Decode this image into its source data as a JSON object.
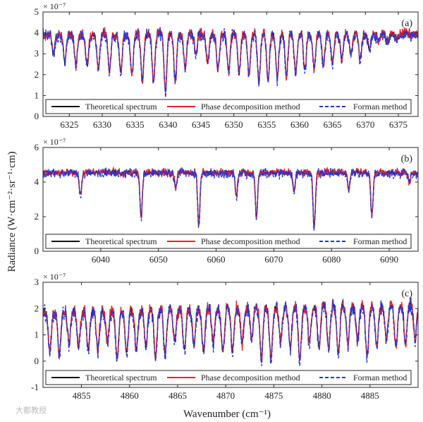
{
  "figure": {
    "ylabel": "Radiance (W·cm⁻²·sr⁻¹·cm)",
    "xlabel": "Wavenumber (cm⁻¹)",
    "watermark": "大都教授",
    "colors": {
      "theoretical": "#111111",
      "phase": "#e8202a",
      "forman": "#2235d9",
      "axis": "#262626"
    }
  },
  "chart_data": [
    {
      "type": "line",
      "panel": "(a)",
      "exponent": "× 10⁻⁷",
      "xlim": [
        6321,
        6378
      ],
      "ylim": [
        0,
        5
      ],
      "xticks": [
        6325,
        6330,
        6335,
        6340,
        6345,
        6350,
        6355,
        6360,
        6365,
        6370,
        6375
      ],
      "yticks": [
        0,
        1,
        2,
        3,
        4,
        5
      ],
      "baseline": 3.95,
      "lines": [
        {
          "x": 6322.6,
          "depth": 0.9
        },
        {
          "x": 6324.3,
          "depth": 1.4
        },
        {
          "x": 6326.0,
          "depth": 1.5
        },
        {
          "x": 6327.7,
          "depth": 1.6
        },
        {
          "x": 6329.4,
          "depth": 1.7
        },
        {
          "x": 6331.1,
          "depth": 1.8
        },
        {
          "x": 6332.8,
          "depth": 1.9
        },
        {
          "x": 6334.5,
          "depth": 2.0
        },
        {
          "x": 6336.1,
          "depth": 2.2
        },
        {
          "x": 6337.8,
          "depth": 2.4
        },
        {
          "x": 6339.6,
          "depth": 2.7
        },
        {
          "x": 6341.1,
          "depth": 2.2
        },
        {
          "x": 6342.6,
          "depth": 1.7
        },
        {
          "x": 6344.2,
          "depth": 0.9
        },
        {
          "x": 6346.0,
          "depth": 1.4
        },
        {
          "x": 6347.6,
          "depth": 1.7
        },
        {
          "x": 6349.2,
          "depth": 1.8
        },
        {
          "x": 6350.8,
          "depth": 1.9
        },
        {
          "x": 6352.3,
          "depth": 2.0
        },
        {
          "x": 6353.8,
          "depth": 2.2
        },
        {
          "x": 6355.2,
          "depth": 2.2
        },
        {
          "x": 6356.6,
          "depth": 2.1
        },
        {
          "x": 6358.0,
          "depth": 2.0
        },
        {
          "x": 6359.4,
          "depth": 1.9
        },
        {
          "x": 6360.8,
          "depth": 1.8
        },
        {
          "x": 6362.2,
          "depth": 1.7
        },
        {
          "x": 6363.6,
          "depth": 1.5
        },
        {
          "x": 6365.0,
          "depth": 1.4
        },
        {
          "x": 6366.4,
          "depth": 1.2
        },
        {
          "x": 6367.8,
          "depth": 1.0
        },
        {
          "x": 6369.2,
          "depth": 1.2
        },
        {
          "x": 6370.6,
          "depth": 0.7
        },
        {
          "x": 6372.0,
          "depth": 0.4
        },
        {
          "x": 6373.4,
          "depth": 0.3
        },
        {
          "x": 6374.8,
          "depth": 0.25
        }
      ],
      "legend": [
        "Theoretical spectrum",
        "Phase decomposition method",
        "Forman method"
      ],
      "legend_position": "bottom"
    },
    {
      "type": "line",
      "panel": "(b)",
      "exponent": "× 10⁻⁷",
      "xlim": [
        6030,
        6095
      ],
      "ylim": [
        0,
        6
      ],
      "xticks": [
        6040,
        6050,
        6060,
        6070,
        6080,
        6090
      ],
      "yticks": [
        0,
        2,
        4,
        6
      ],
      "baseline": 4.55,
      "lines": [
        {
          "x": 6036.5,
          "depth": 1.3
        },
        {
          "x": 6047.0,
          "depth": 2.6
        },
        {
          "x": 6053.0,
          "depth": 0.9
        },
        {
          "x": 6057.0,
          "depth": 3.0
        },
        {
          "x": 6063.5,
          "depth": 1.4
        },
        {
          "x": 6067.0,
          "depth": 2.6
        },
        {
          "x": 6073.5,
          "depth": 1.0
        },
        {
          "x": 6077.0,
          "depth": 3.2
        },
        {
          "x": 6083.0,
          "depth": 0.9
        },
        {
          "x": 6087.0,
          "depth": 2.5
        },
        {
          "x": 6093.5,
          "depth": 0.6
        }
      ],
      "legend": [
        "Theoretical spectrum",
        "Phase decomposition method",
        "Forman method"
      ],
      "legend_position": "bottom"
    },
    {
      "type": "line",
      "panel": "(c)",
      "exponent": "× 10⁻⁷",
      "xlim": [
        4851,
        4890
      ],
      "ylim": [
        -1,
        3
      ],
      "xticks": [
        4855,
        4860,
        4865,
        4870,
        4875,
        4880,
        4885
      ],
      "yticks": [
        -1,
        0,
        1,
        2,
        3
      ],
      "baseline_start": 1.9,
      "baseline_end": 2.15,
      "line_spacing": 1.0,
      "lines_start": 4851.7,
      "depth_range": [
        1.2,
        2.0
      ],
      "legend": [
        "Theoretical spectrum",
        "Phase decomposition method",
        "Forman method"
      ],
      "legend_position": "bottom"
    }
  ]
}
